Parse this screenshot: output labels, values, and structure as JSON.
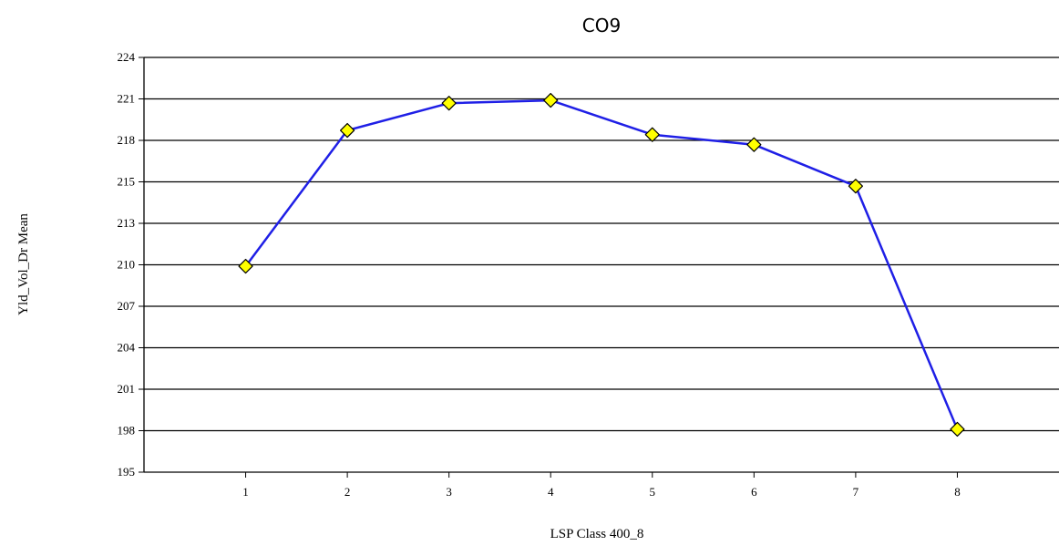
{
  "chart_data": {
    "type": "line",
    "title": "CO9",
    "xlabel": "LSP Class 400_8",
    "ylabel": "Yld_Vol_Dr Mean",
    "x": [
      1,
      2,
      3,
      4,
      5,
      6,
      7,
      8
    ],
    "series": [
      {
        "values": [
          209.4,
          218.9,
          220.8,
          221.0,
          218.6,
          217.9,
          215.0,
          198.0
        ]
      }
    ],
    "y_ticks": [
      "195",
      "198",
      "201",
      "204",
      "207",
      "210",
      "213",
      "215",
      "218",
      "221",
      "224"
    ],
    "x_ticks": [
      "1",
      "2",
      "3",
      "4",
      "5",
      "6",
      "7",
      "8"
    ],
    "ylim": [
      195,
      224
    ],
    "xlim": [
      0,
      9
    ],
    "grid": "horizontal",
    "legend": "none",
    "colors": {
      "line": "#1f1fe6",
      "marker_fill": "#ffff00",
      "marker_stroke": "#000000",
      "grid": "#000000"
    }
  }
}
